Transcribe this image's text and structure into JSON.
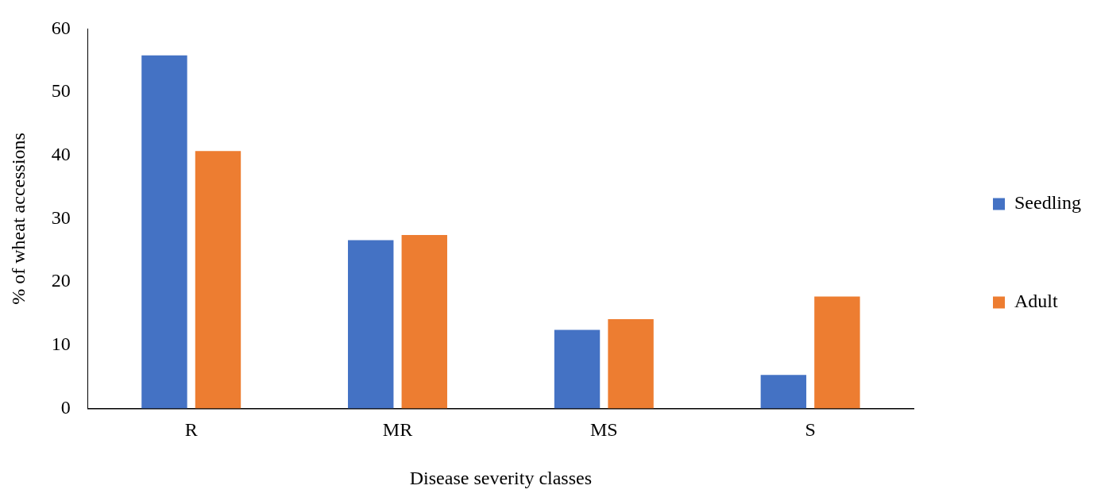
{
  "chart_data": {
    "type": "bar",
    "xlabel": "Disease severity classes",
    "ylabel": "% of wheat accessions",
    "categories": [
      "R",
      "MR",
      "MS",
      "S"
    ],
    "series": [
      {
        "name": "Seedling",
        "color": "#4472c4",
        "values": [
          55.8,
          26.6,
          12.4,
          5.3
        ]
      },
      {
        "name": "Adult",
        "color": "#ed7d31",
        "values": [
          40.7,
          27.4,
          14.1,
          17.7
        ]
      }
    ],
    "ylim": [
      0,
      60
    ],
    "yticks": [
      0,
      10,
      20,
      30,
      40,
      50,
      60
    ],
    "grid": false,
    "legend": "right"
  }
}
